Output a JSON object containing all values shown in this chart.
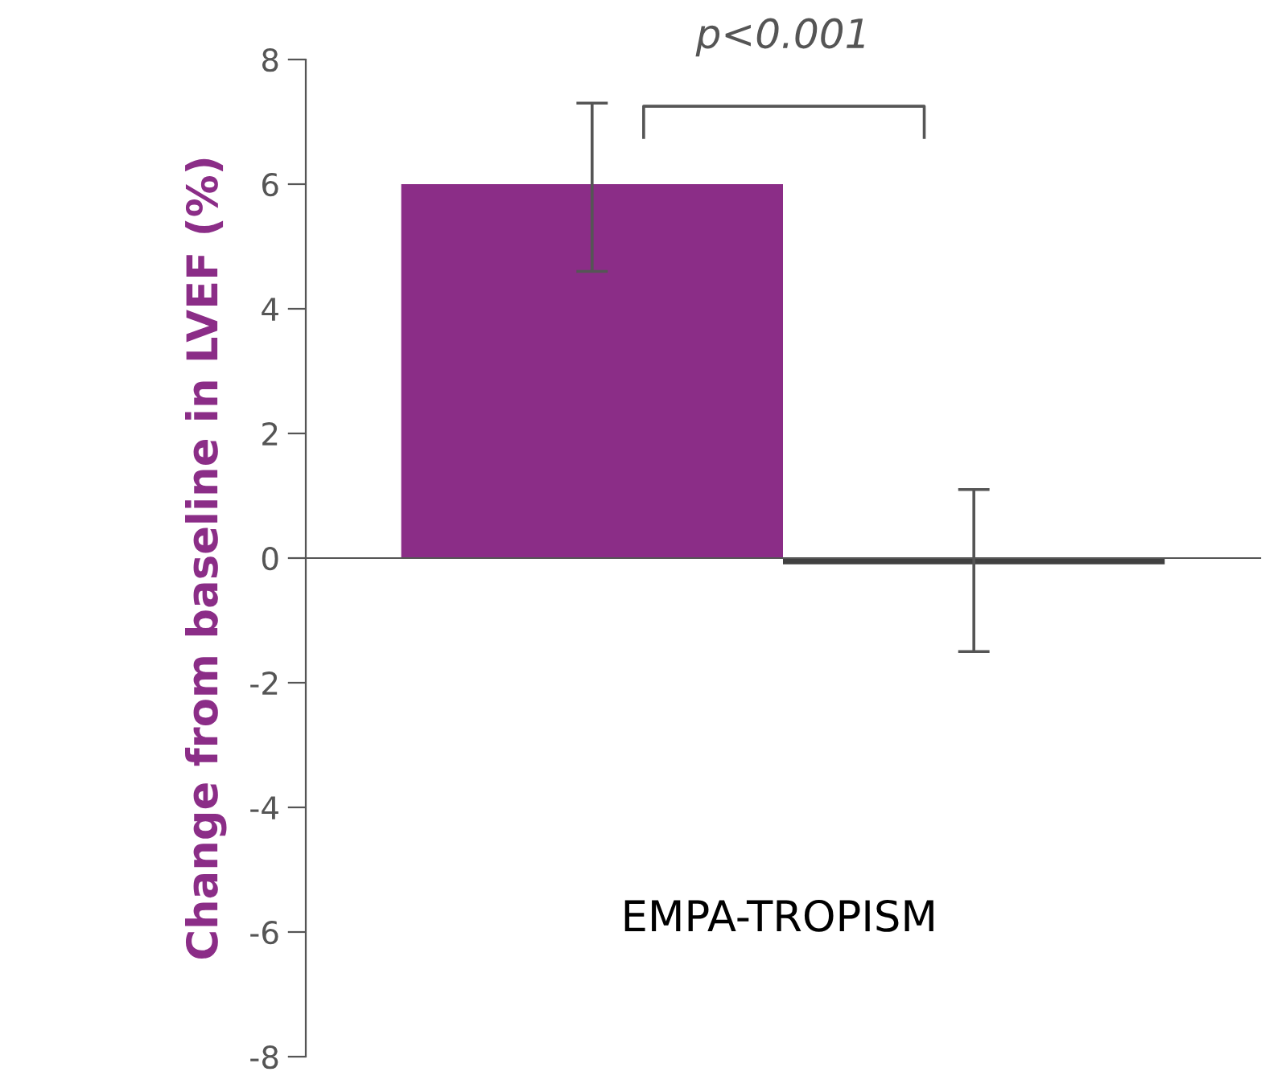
{
  "chart_data": {
    "type": "bar",
    "ylabel": "Change from baseline in LVEF (%)",
    "categories": [
      null,
      null
    ],
    "values": [
      6,
      -0.1
    ],
    "colors": [
      "#8b2d87",
      "#404040"
    ],
    "errors": [
      [
        4.6,
        7.3
      ],
      [
        -1.5,
        1.1
      ]
    ],
    "ylim": [
      -8,
      8
    ],
    "yticks": [
      -8,
      -6,
      -4,
      -2,
      0,
      2,
      4,
      6,
      8
    ],
    "legend": false,
    "annotations": [
      "p<0.001",
      "EMPA-TROPISM"
    ]
  }
}
